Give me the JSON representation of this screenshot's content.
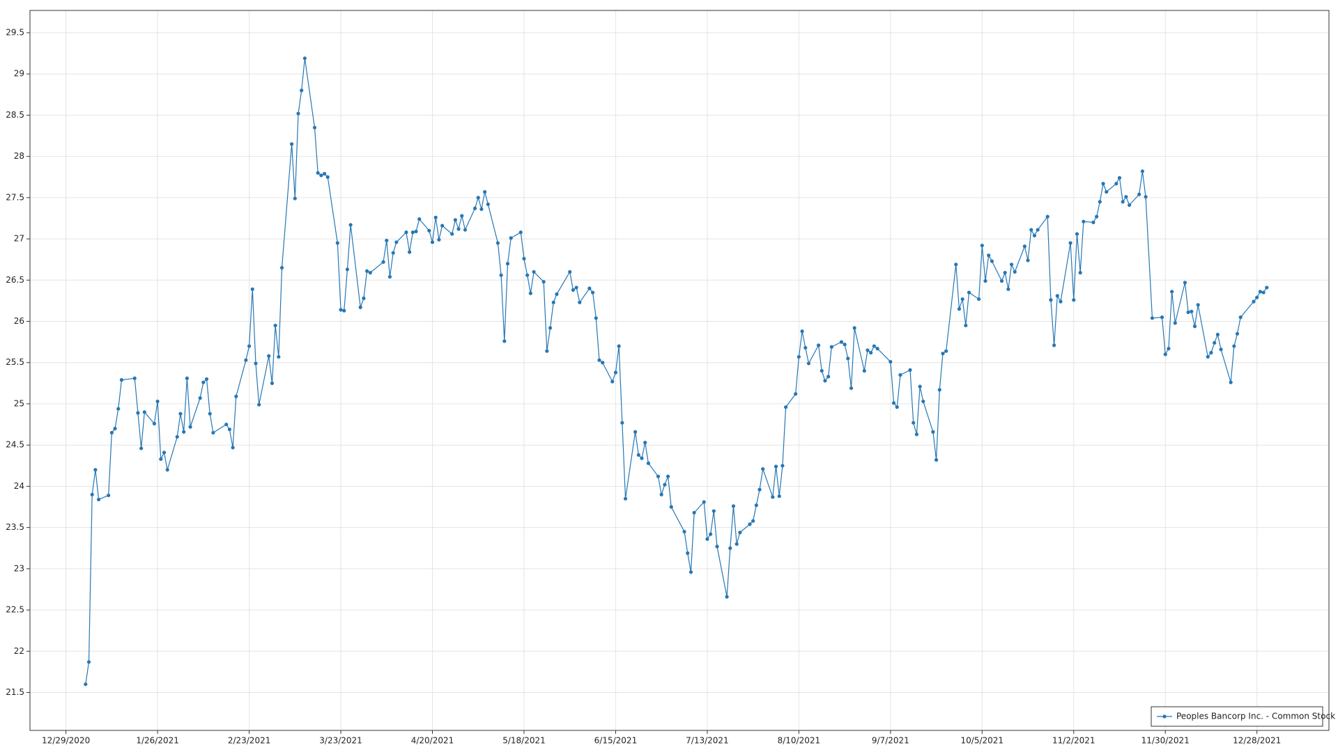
{
  "chart_data": {
    "type": "line",
    "x": [
      "1/4/2021",
      "1/5/2021",
      "1/6/2021",
      "1/7/2021",
      "1/8/2021",
      "1/11/2021",
      "1/12/2021",
      "1/13/2021",
      "1/14/2021",
      "1/15/2021",
      "1/19/2021",
      "1/20/2021",
      "1/21/2021",
      "1/22/2021",
      "1/25/2021",
      "1/26/2021",
      "1/27/2021",
      "1/28/2021",
      "1/29/2021",
      "2/1/2021",
      "2/2/2021",
      "2/3/2021",
      "2/4/2021",
      "2/5/2021",
      "2/8/2021",
      "2/9/2021",
      "2/10/2021",
      "2/11/2021",
      "2/12/2021",
      "2/16/2021",
      "2/17/2021",
      "2/18/2021",
      "2/19/2021",
      "2/22/2021",
      "2/23/2021",
      "2/24/2021",
      "2/25/2021",
      "2/26/2021",
      "3/1/2021",
      "3/2/2021",
      "3/3/2021",
      "3/4/2021",
      "3/5/2021",
      "3/8/2021",
      "3/9/2021",
      "3/10/2021",
      "3/11/2021",
      "3/12/2021",
      "3/15/2021",
      "3/16/2021",
      "3/17/2021",
      "3/18/2021",
      "3/19/2021",
      "3/22/2021",
      "3/23/2021",
      "3/24/2021",
      "3/25/2021",
      "3/26/2021",
      "3/29/2021",
      "3/30/2021",
      "3/31/2021",
      "4/1/2021",
      "4/5/2021",
      "4/6/2021",
      "4/7/2021",
      "4/8/2021",
      "4/9/2021",
      "4/12/2021",
      "4/13/2021",
      "4/14/2021",
      "4/15/2021",
      "4/16/2021",
      "4/19/2021",
      "4/20/2021",
      "4/21/2021",
      "4/22/2021",
      "4/23/2021",
      "4/26/2021",
      "4/27/2021",
      "4/28/2021",
      "4/29/2021",
      "4/30/2021",
      "5/3/2021",
      "5/4/2021",
      "5/5/2021",
      "5/6/2021",
      "5/7/2021",
      "5/10/2021",
      "5/11/2021",
      "5/12/2021",
      "5/13/2021",
      "5/14/2021",
      "5/17/2021",
      "5/18/2021",
      "5/19/2021",
      "5/20/2021",
      "5/21/2021",
      "5/24/2021",
      "5/25/2021",
      "5/26/2021",
      "5/27/2021",
      "5/28/2021",
      "6/1/2021",
      "6/2/2021",
      "6/3/2021",
      "6/4/2021",
      "6/7/2021",
      "6/8/2021",
      "6/9/2021",
      "6/10/2021",
      "6/11/2021",
      "6/14/2021",
      "6/15/2021",
      "6/16/2021",
      "6/17/2021",
      "6/18/2021",
      "6/21/2021",
      "6/22/2021",
      "6/23/2021",
      "6/24/2021",
      "6/25/2021",
      "6/28/2021",
      "6/29/2021",
      "6/30/2021",
      "7/1/2021",
      "7/2/2021",
      "7/6/2021",
      "7/7/2021",
      "7/8/2021",
      "7/9/2021",
      "7/12/2021",
      "7/13/2021",
      "7/14/2021",
      "7/15/2021",
      "7/16/2021",
      "7/19/2021",
      "7/20/2021",
      "7/21/2021",
      "7/22/2021",
      "7/23/2021",
      "7/26/2021",
      "7/27/2021",
      "7/28/2021",
      "7/29/2021",
      "7/30/2021",
      "8/2/2021",
      "8/3/2021",
      "8/4/2021",
      "8/5/2021",
      "8/6/2021",
      "8/9/2021",
      "8/10/2021",
      "8/11/2021",
      "8/12/2021",
      "8/13/2021",
      "8/16/2021",
      "8/17/2021",
      "8/18/2021",
      "8/19/2021",
      "8/20/2021",
      "8/23/2021",
      "8/24/2021",
      "8/25/2021",
      "8/26/2021",
      "8/27/2021",
      "8/30/2021",
      "8/31/2021",
      "9/1/2021",
      "9/2/2021",
      "9/3/2021",
      "9/7/2021",
      "9/8/2021",
      "9/9/2021",
      "9/10/2021",
      "9/13/2021",
      "9/14/2021",
      "9/15/2021",
      "9/16/2021",
      "9/17/2021",
      "9/20/2021",
      "9/21/2021",
      "9/22/2021",
      "9/23/2021",
      "9/24/2021",
      "9/27/2021",
      "9/28/2021",
      "9/29/2021",
      "9/30/2021",
      "10/1/2021",
      "10/4/2021",
      "10/5/2021",
      "10/6/2021",
      "10/7/2021",
      "10/8/2021",
      "10/11/2021",
      "10/12/2021",
      "10/13/2021",
      "10/14/2021",
      "10/15/2021",
      "10/18/2021",
      "10/19/2021",
      "10/20/2021",
      "10/21/2021",
      "10/22/2021",
      "10/25/2021",
      "10/26/2021",
      "10/27/2021",
      "10/28/2021",
      "10/29/2021",
      "11/1/2021",
      "11/2/2021",
      "11/3/2021",
      "11/4/2021",
      "11/5/2021",
      "11/8/2021",
      "11/9/2021",
      "11/10/2021",
      "11/11/2021",
      "11/12/2021",
      "11/15/2021",
      "11/16/2021",
      "11/17/2021",
      "11/18/2021",
      "11/19/2021",
      "11/22/2021",
      "11/23/2021",
      "11/24/2021",
      "11/26/2021",
      "11/29/2021",
      "11/30/2021",
      "12/1/2021",
      "12/2/2021",
      "12/3/2021",
      "12/6/2021",
      "12/7/2021",
      "12/8/2021",
      "12/9/2021",
      "12/10/2021",
      "12/13/2021",
      "12/14/2021",
      "12/15/2021",
      "12/16/2021",
      "12/17/2021",
      "12/20/2021",
      "12/21/2021",
      "12/22/2021",
      "12/23/2021",
      "12/27/2021",
      "12/28/2021",
      "12/29/2021",
      "12/30/2021",
      "12/31/2021"
    ],
    "series": [
      {
        "name": "Peoples Bancorp Inc. - Common Stock",
        "color": "#2677b4",
        "values": [
          21.6,
          21.87,
          23.9,
          24.2,
          23.84,
          23.89,
          24.65,
          24.7,
          24.94,
          25.29,
          25.31,
          24.89,
          24.46,
          24.9,
          24.76,
          25.03,
          24.33,
          24.41,
          24.2,
          24.6,
          24.88,
          24.66,
          25.31,
          24.72,
          25.07,
          25.26,
          25.3,
          24.88,
          24.65,
          24.75,
          24.69,
          24.47,
          25.09,
          25.53,
          25.7,
          26.39,
          25.49,
          24.99,
          25.58,
          25.25,
          25.95,
          25.57,
          26.65,
          28.15,
          27.49,
          28.52,
          28.8,
          29.19,
          28.35,
          27.8,
          27.77,
          27.79,
          27.75,
          26.95,
          26.14,
          26.13,
          26.63,
          27.17,
          26.17,
          26.28,
          26.61,
          26.59,
          26.72,
          26.98,
          26.54,
          26.83,
          26.96,
          27.08,
          26.84,
          27.08,
          27.09,
          27.24,
          27.1,
          26.96,
          27.26,
          26.99,
          27.16,
          27.06,
          27.23,
          27.12,
          27.28,
          27.11,
          27.37,
          27.5,
          27.36,
          27.57,
          27.42,
          26.95,
          26.56,
          25.76,
          26.7,
          27.01,
          27.08,
          26.76,
          26.56,
          26.34,
          26.6,
          26.48,
          25.64,
          25.92,
          26.23,
          26.33,
          26.6,
          26.38,
          26.41,
          26.23,
          26.4,
          26.35,
          26.04,
          25.53,
          25.5,
          25.27,
          25.38,
          25.7,
          24.77,
          23.85,
          24.66,
          24.38,
          24.34,
          24.53,
          24.28,
          24.12,
          23.9,
          24.02,
          24.12,
          23.75,
          23.45,
          23.19,
          22.96,
          23.68,
          23.81,
          23.36,
          23.42,
          23.7,
          23.27,
          22.66,
          23.25,
          23.76,
          23.3,
          23.44,
          23.54,
          23.58,
          23.77,
          23.96,
          24.21,
          23.87,
          24.24,
          23.88,
          24.25,
          24.96,
          25.12,
          25.57,
          25.88,
          25.68,
          25.49,
          25.71,
          25.4,
          25.28,
          25.33,
          25.69,
          25.75,
          25.72,
          25.55,
          25.19,
          25.92,
          25.4,
          25.65,
          25.62,
          25.7,
          25.67,
          25.51,
          25.01,
          24.96,
          25.35,
          25.41,
          24.77,
          24.63,
          25.21,
          25.03,
          24.66,
          24.32,
          25.17,
          25.61,
          25.64,
          26.69,
          26.15,
          26.27,
          25.95,
          26.35,
          26.27,
          26.92,
          26.49,
          26.8,
          26.73,
          26.49,
          26.59,
          26.39,
          26.69,
          26.6,
          26.91,
          26.74,
          27.11,
          27.04,
          27.11,
          27.27,
          26.26,
          25.71,
          26.31,
          26.24,
          26.95,
          26.26,
          27.06,
          26.59,
          27.21,
          27.2,
          27.27,
          27.45,
          27.67,
          27.57,
          27.67,
          27.74,
          27.45,
          27.51,
          27.41,
          27.54,
          27.82,
          27.51,
          26.04,
          26.05,
          25.6,
          25.67,
          26.36,
          25.98,
          26.47,
          26.11,
          26.12,
          25.94,
          26.2,
          25.57,
          25.62,
          25.74,
          25.84,
          25.66,
          25.26,
          25.7,
          25.85,
          26.05,
          26.24,
          26.29,
          26.36,
          26.35,
          26.41
        ]
      }
    ],
    "xlim": [
      "12/18/2020",
      "1/19/2022"
    ],
    "xticks": [
      "12/29/2020",
      "1/26/2021",
      "2/23/2021",
      "3/23/2021",
      "4/20/2021",
      "5/18/2021",
      "6/15/2021",
      "7/13/2021",
      "8/10/2021",
      "9/7/2021",
      "10/5/2021",
      "11/2/2021",
      "11/30/2021",
      "12/28/2021"
    ],
    "ylim": [
      21.04,
      29.77
    ],
    "yticks": [
      21.5,
      22,
      22.5,
      23,
      23.5,
      24,
      24.5,
      25,
      25.5,
      26,
      26.5,
      27,
      27.5,
      28,
      28.5,
      29,
      29.5
    ],
    "grid": true,
    "legend": "lower right"
  }
}
